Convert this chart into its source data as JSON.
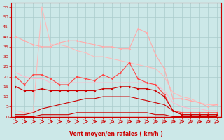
{
  "xlabel": "Vent moyen/en rafales ( km/h )",
  "bg_color": "#cce8e8",
  "grid_color": "#aacccc",
  "x": [
    0,
    1,
    2,
    3,
    4,
    5,
    6,
    7,
    8,
    9,
    10,
    11,
    12,
    13,
    14,
    15,
    16,
    17,
    18,
    19,
    20,
    21,
    22,
    23
  ],
  "line1_top": [
    3,
    2,
    2,
    55,
    36,
    36,
    35,
    33,
    32,
    30,
    30,
    29,
    28,
    27,
    26,
    25,
    24,
    20,
    12,
    10,
    9,
    7,
    6,
    6
  ],
  "line2_upper": [
    40,
    38,
    36,
    35,
    35,
    37,
    38,
    38,
    37,
    36,
    35,
    35,
    34,
    34,
    44,
    42,
    31,
    24,
    9,
    9,
    8,
    7,
    5,
    6
  ],
  "line3_mid": [
    22,
    20,
    19,
    19,
    17,
    17,
    17,
    17,
    17,
    17,
    17,
    17,
    17,
    17,
    17,
    17,
    16,
    13,
    7,
    5,
    4,
    4,
    3,
    3
  ],
  "line4_markers": [
    20,
    16,
    21,
    21,
    19,
    16,
    16,
    20,
    19,
    18,
    21,
    19,
    22,
    27,
    19,
    17,
    16,
    11,
    3,
    2,
    2,
    2,
    2,
    2
  ],
  "line5_low": [
    15,
    13,
    13,
    14,
    13,
    13,
    13,
    13,
    13,
    13,
    14,
    14,
    15,
    15,
    14,
    14,
    13,
    10,
    3,
    1,
    1,
    1,
    1,
    1
  ],
  "line6_curve": [
    1,
    1,
    2,
    4,
    5,
    6,
    7,
    8,
    9,
    9,
    10,
    10,
    10,
    10,
    9,
    8,
    7,
    6,
    3,
    1,
    1,
    1,
    1,
    1
  ],
  "line7_bottom": [
    0,
    0,
    0,
    1,
    1,
    1,
    1,
    2,
    2,
    2,
    2,
    2,
    2,
    2,
    2,
    2,
    1,
    1,
    0,
    0,
    0,
    0,
    0,
    0
  ],
  "color1": "#ffbbbb",
  "color2": "#ffaaaa",
  "color3": "#ffbbcc",
  "color4": "#ff4444",
  "color5": "#cc0000",
  "color6": "#cc0000",
  "color7": "#cc0000",
  "ylim": [
    0,
    57
  ],
  "yticks": [
    0,
    5,
    10,
    15,
    20,
    25,
    30,
    35,
    40,
    45,
    50,
    55
  ],
  "xlim": [
    -0.5,
    23.5
  ]
}
